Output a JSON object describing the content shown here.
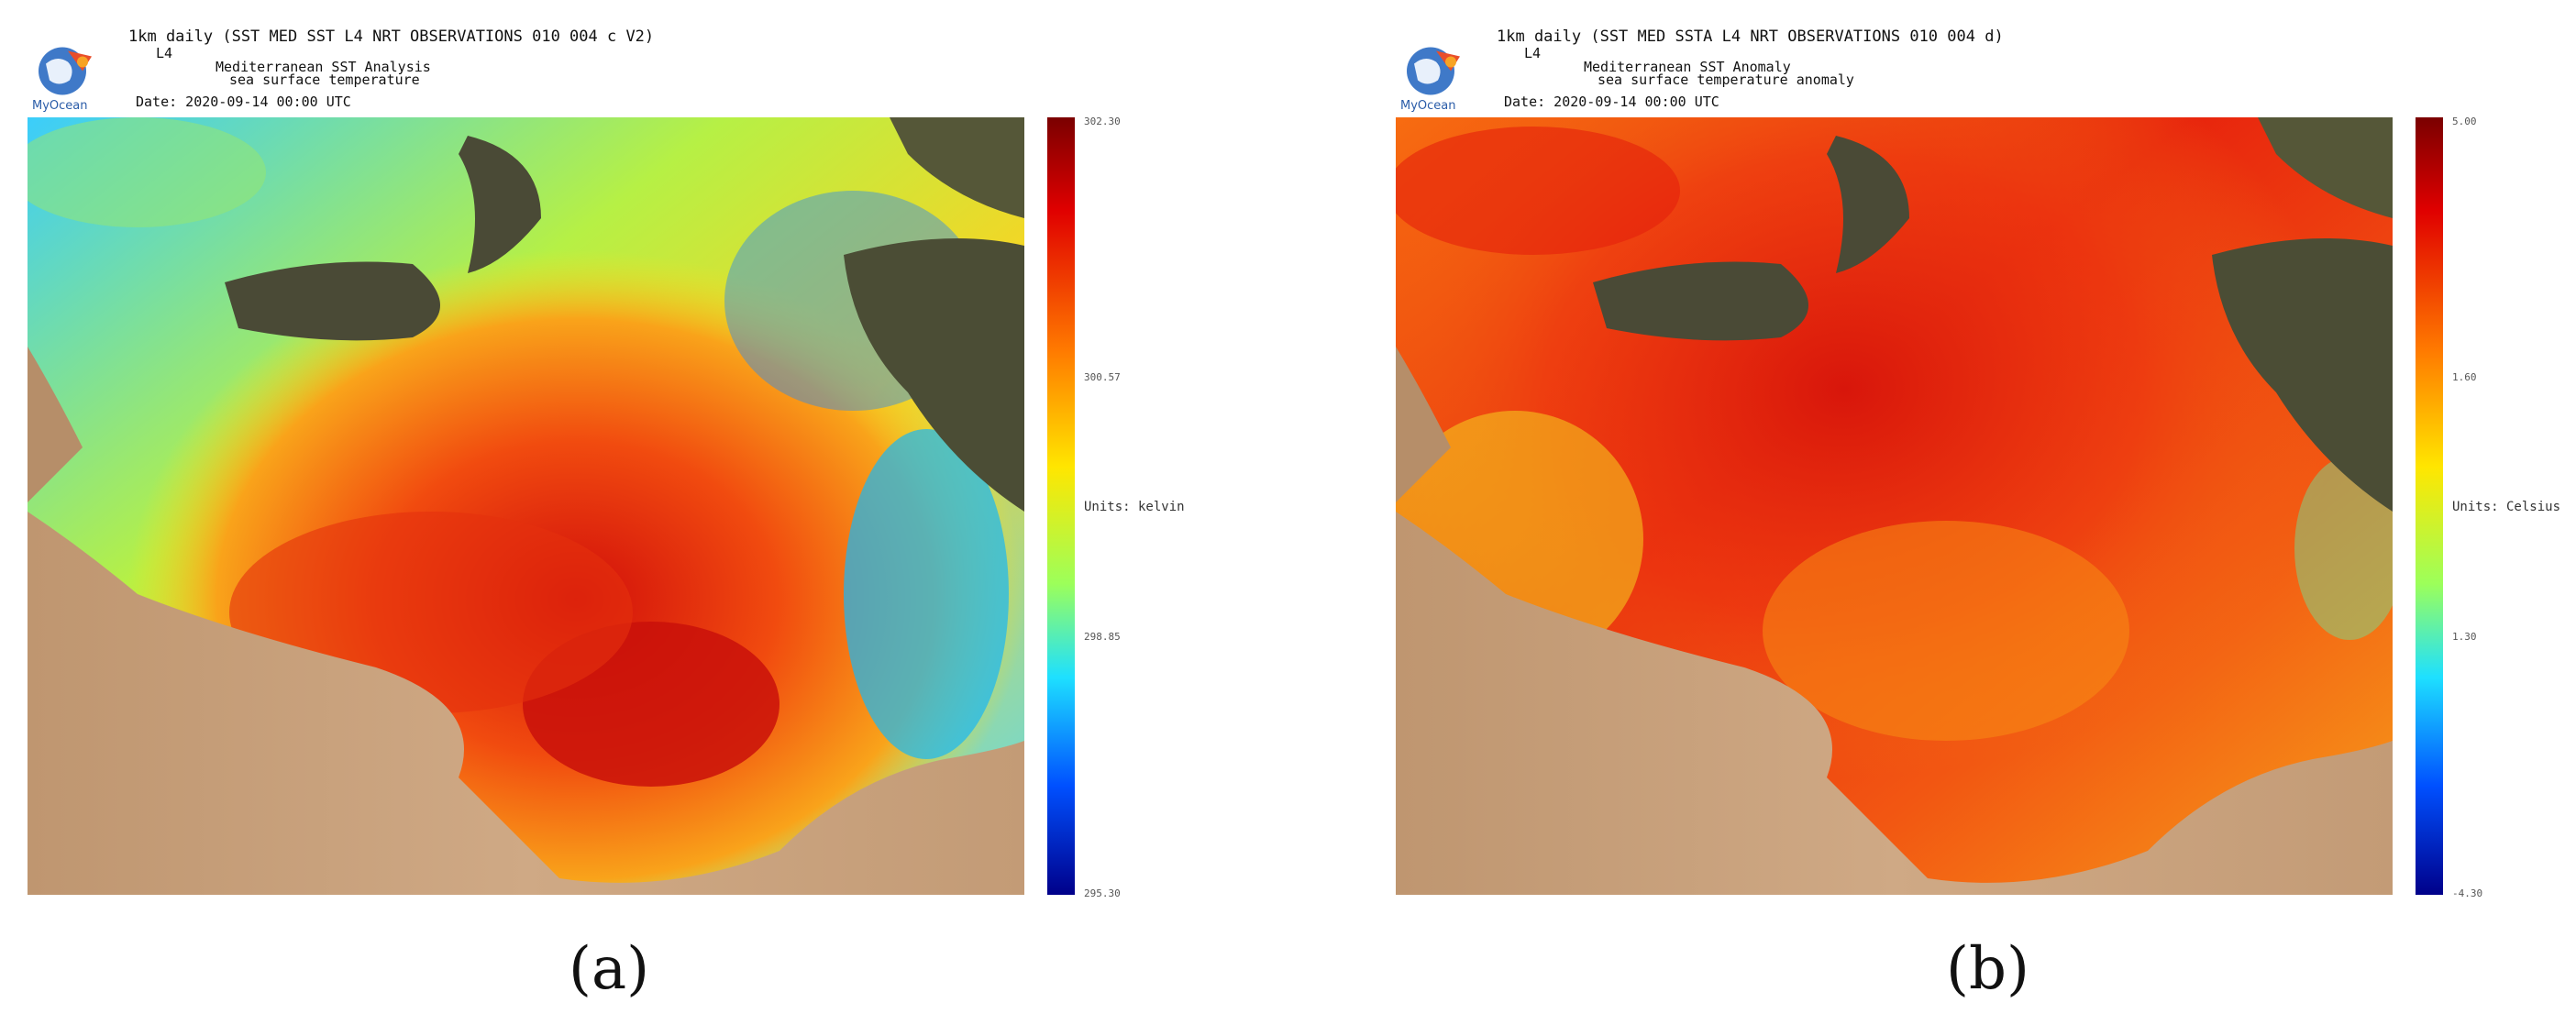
{
  "panels": [
    {
      "header": {
        "title": "1km daily (SST MED SST L4 NRT OBSERVATIONS 010 004 c V2)",
        "level": "L4",
        "product": "Mediterranean SST Analysis",
        "variable": "sea surface temperature",
        "date": "Date: 2020-09-14 00:00 UTC"
      },
      "logo_text": "MyOcean",
      "colorbar": {
        "ticks": [
          "302.30",
          "300.57",
          "298.85",
          "295.30"
        ],
        "units": "Units: kelvin"
      },
      "caption": "(a)"
    },
    {
      "header": {
        "title": "1km daily (SST MED SSTA L4 NRT OBSERVATIONS 010 004 d)",
        "level": "L4",
        "product": "Mediterranean SST Anomaly",
        "variable": "sea surface temperature anomaly",
        "date": "Date: 2020-09-14 00:00 UTC"
      },
      "logo_text": "MyOcean",
      "colorbar": {
        "ticks": [
          "5.00",
          "1.60",
          "1.30",
          "-4.30"
        ],
        "units": "Units: Celsius"
      },
      "caption": "(b)"
    }
  ],
  "colors": {
    "land_desert": "#c9a27a",
    "land_vegetation": "#4a4a36",
    "sea_hot": "#d9160c",
    "sea_warm": "#f88a10",
    "sea_mild": "#f6e21f",
    "sea_cool": "#3fd0ff"
  }
}
